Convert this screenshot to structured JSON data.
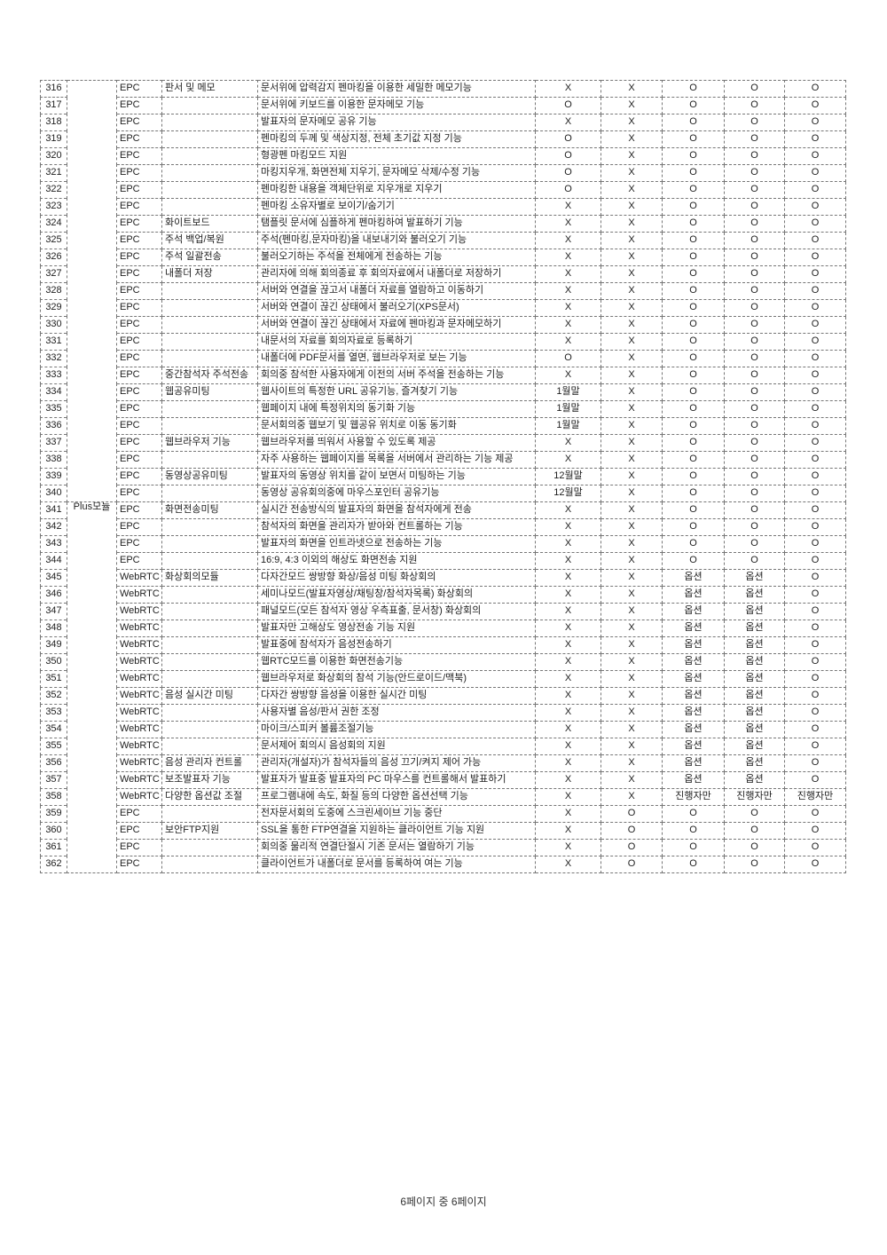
{
  "page": {
    "footer": "6페이지 중 6페이지"
  },
  "table": {
    "module_groups": [
      {
        "label": "",
        "rows": 25
      },
      {
        "label": "Plus모듈",
        "rows": 22
      }
    ],
    "rows": [
      {
        "no": "316",
        "engine": "EPC",
        "category": "판서 및 메모",
        "feature": "문서위에 압력감지 펜마킹을 이용한 세밀한 메모기능",
        "values": [
          "X",
          "X",
          "O",
          "O",
          "O"
        ]
      },
      {
        "no": "317",
        "engine": "EPC",
        "category": "",
        "feature": "문서위에 키보드를 이용한 문자메모 기능",
        "values": [
          "O",
          "X",
          "O",
          "O",
          "O"
        ]
      },
      {
        "no": "318",
        "engine": "EPC",
        "category": "",
        "feature": "발표자의 문자메모 공유 기능",
        "values": [
          "X",
          "X",
          "O",
          "O",
          "O"
        ]
      },
      {
        "no": "319",
        "engine": "EPC",
        "category": "",
        "feature": "펜마킹의 두께 및 색상지정, 전체 초기값 지정 기능",
        "values": [
          "O",
          "X",
          "O",
          "O",
          "O"
        ]
      },
      {
        "no": "320",
        "engine": "EPC",
        "category": "",
        "feature": "형광펜 마킹모드 지원",
        "values": [
          "O",
          "X",
          "O",
          "O",
          "O"
        ]
      },
      {
        "no": "321",
        "engine": "EPC",
        "category": "",
        "feature": "마킹지우개, 화면전체 지우기, 문자메모 삭제/수정 기능",
        "values": [
          "O",
          "X",
          "O",
          "O",
          "O"
        ]
      },
      {
        "no": "322",
        "engine": "EPC",
        "category": "",
        "feature": "펜마킹한 내용을 객체단위로 지우개로 지우기",
        "values": [
          "O",
          "X",
          "O",
          "O",
          "O"
        ]
      },
      {
        "no": "323",
        "engine": "EPC",
        "category": "",
        "feature": "펜마킹 소유자별로 보이기/숨기기",
        "values": [
          "X",
          "X",
          "O",
          "O",
          "O"
        ]
      },
      {
        "no": "324",
        "engine": "EPC",
        "category": "화이트보드",
        "feature": "탬플릿 문서에 심플하게 펜마킹하여 발표하기 기능",
        "values": [
          "X",
          "X",
          "O",
          "O",
          "O"
        ]
      },
      {
        "no": "325",
        "engine": "EPC",
        "category": "주석 백업/복원",
        "feature": "주석(펜마킹,문자마킹)을 내보내기와 불러오기 기능",
        "values": [
          "X",
          "X",
          "O",
          "O",
          "O"
        ]
      },
      {
        "no": "326",
        "engine": "EPC",
        "category": "주석 일괄전송",
        "feature": "불러오기하는 주석을 전체에게 전송하는 기능",
        "values": [
          "X",
          "X",
          "O",
          "O",
          "O"
        ]
      },
      {
        "no": "327",
        "engine": "EPC",
        "category": "내폴더 저장",
        "feature": "관리자에 의해 회의종료 후 회의자료에서 내폴더로 저장하기",
        "values": [
          "X",
          "X",
          "O",
          "O",
          "O"
        ]
      },
      {
        "no": "328",
        "engine": "EPC",
        "category": "",
        "feature": "서버와 연결을 끊고서 내폴더 자료를 열람하고 이동하기",
        "values": [
          "X",
          "X",
          "O",
          "O",
          "O"
        ]
      },
      {
        "no": "329",
        "engine": "EPC",
        "category": "",
        "feature": "서버와 연결이 끊긴 상태에서 불러오기(XPS문서)",
        "values": [
          "X",
          "X",
          "O",
          "O",
          "O"
        ]
      },
      {
        "no": "330",
        "engine": "EPC",
        "category": "",
        "feature": "서버와 연결이 끊긴 상태에서 자료에 펜마킹과 문자메모하기",
        "values": [
          "X",
          "X",
          "O",
          "O",
          "O"
        ]
      },
      {
        "no": "331",
        "engine": "EPC",
        "category": "",
        "feature": "내문서의 자료를 회의자료로 등록하기",
        "values": [
          "X",
          "X",
          "O",
          "O",
          "O"
        ]
      },
      {
        "no": "332",
        "engine": "EPC",
        "category": "",
        "feature": "내폴더에 PDF문서를 열면, 웹브라우저로 보는 기능",
        "values": [
          "O",
          "X",
          "O",
          "O",
          "O"
        ]
      },
      {
        "no": "333",
        "engine": "EPC",
        "category": "중간참석자 주석전송",
        "feature": "회의중 참석한 사용자에게 이전의 서버 주석을 전송하는 기능",
        "values": [
          "X",
          "X",
          "O",
          "O",
          "O"
        ]
      },
      {
        "no": "334",
        "engine": "EPC",
        "category": "웹공유미팅",
        "feature": "웹사이트의 특정한 URL 공유기능, 즐겨찾기 기능",
        "values": [
          "1월말",
          "X",
          "O",
          "O",
          "O"
        ]
      },
      {
        "no": "335",
        "engine": "EPC",
        "category": "",
        "feature": "웹페이지 내에 특정위치의 동기화 기능",
        "values": [
          "1월말",
          "X",
          "O",
          "O",
          "O"
        ]
      },
      {
        "no": "336",
        "engine": "EPC",
        "category": "",
        "feature": "문서회의중 웹보기 및 웹공유 위치로 이동 동기화",
        "values": [
          "1월말",
          "X",
          "O",
          "O",
          "O"
        ]
      },
      {
        "no": "337",
        "engine": "EPC",
        "category": "웹브라우저 기능",
        "feature": "웹브라우저를 띄워서 사용할 수 있도록 제공",
        "values": [
          "X",
          "X",
          "O",
          "O",
          "O"
        ]
      },
      {
        "no": "338",
        "engine": "EPC",
        "category": "",
        "feature": "자주 사용하는 웹페이지를 목록을 서버에서 관리하는 기능 제공",
        "values": [
          "X",
          "X",
          "O",
          "O",
          "O"
        ]
      },
      {
        "no": "339",
        "engine": "EPC",
        "category": "동영상공유미팅",
        "feature": "발표자의 동영상 위치를 같이 보면서 미팅하는 기능",
        "values": [
          "12월말",
          "X",
          "O",
          "O",
          "O"
        ]
      },
      {
        "no": "340",
        "engine": "EPC",
        "category": "",
        "feature": "동영상 공유회의중에 마우스포인터 공유기능",
        "values": [
          "12월말",
          "X",
          "O",
          "O",
          "O"
        ]
      },
      {
        "no": "341",
        "engine": "EPC",
        "category": "화면전송미팅",
        "feature": "실시간 전송방식의 발표자의 화면을 참석자에게 전송",
        "values": [
          "X",
          "X",
          "O",
          "O",
          "O"
        ]
      },
      {
        "no": "342",
        "engine": "EPC",
        "category": "",
        "feature": "참석자의 화면을 관리자가 받아와 컨트롤하는 기능",
        "values": [
          "X",
          "X",
          "O",
          "O",
          "O"
        ]
      },
      {
        "no": "343",
        "engine": "EPC",
        "category": "",
        "feature": "발표자의 화면을 인트라넷으로 전송하는 기능",
        "values": [
          "X",
          "X",
          "O",
          "O",
          "O"
        ]
      },
      {
        "no": "344",
        "engine": "EPC",
        "category": "",
        "feature": "16:9, 4:3 이외의 해상도 화면전송 지원",
        "values": [
          "X",
          "X",
          "O",
          "O",
          "O"
        ]
      },
      {
        "no": "345",
        "engine": "WebRTC",
        "category": "화상회의모듈",
        "feature": "다자간모드 쌍방향 화상/음성 미팅 화상회의",
        "values": [
          "X",
          "X",
          "옵션",
          "옵션",
          "O"
        ]
      },
      {
        "no": "346",
        "engine": "WebRTC",
        "category": "",
        "feature": "세미나모드(발표자영상/채팅창/참석자목록) 화상회의",
        "values": [
          "X",
          "X",
          "옵션",
          "옵션",
          "O"
        ]
      },
      {
        "no": "347",
        "engine": "WebRTC",
        "category": "",
        "feature": "패널모드(모든 참석자 영상 우측표출, 문서창) 화상회의",
        "values": [
          "X",
          "X",
          "옵션",
          "옵션",
          "O"
        ]
      },
      {
        "no": "348",
        "engine": "WebRTC",
        "category": "",
        "feature": "발표자만 고해상도 영상전송 기능 지원",
        "values": [
          "X",
          "X",
          "옵션",
          "옵션",
          "O"
        ]
      },
      {
        "no": "349",
        "engine": "WebRTC",
        "category": "",
        "feature": "발표중에 참석자가 음성전송하기",
        "values": [
          "X",
          "X",
          "옵션",
          "옵션",
          "O"
        ]
      },
      {
        "no": "350",
        "engine": "WebRTC",
        "category": "",
        "feature": "웹RTC모드를 이용한 화면전송기능",
        "values": [
          "X",
          "X",
          "옵션",
          "옵션",
          "O"
        ]
      },
      {
        "no": "351",
        "engine": "WebRTC",
        "category": "",
        "feature": "웹브라우저로 화상회의 참석 기능(안드로이드/맥북)",
        "values": [
          "X",
          "X",
          "옵션",
          "옵션",
          "O"
        ]
      },
      {
        "no": "352",
        "engine": "WebRTC",
        "category": "음성 실시간 미팅",
        "feature": "다자간 쌍방향 음성을 이용한 실시간 미팅",
        "values": [
          "X",
          "X",
          "옵션",
          "옵션",
          "O"
        ]
      },
      {
        "no": "353",
        "engine": "WebRTC",
        "category": "",
        "feature": "사용자별 음성/판서 권한 조정",
        "values": [
          "X",
          "X",
          "옵션",
          "옵션",
          "O"
        ]
      },
      {
        "no": "354",
        "engine": "WebRTC",
        "category": "",
        "feature": "마이크/스피커 볼륨조절기능",
        "values": [
          "X",
          "X",
          "옵션",
          "옵션",
          "O"
        ]
      },
      {
        "no": "355",
        "engine": "WebRTC",
        "category": "",
        "feature": "문서제어 회의시 음성회의 지원",
        "values": [
          "X",
          "X",
          "옵션",
          "옵션",
          "O"
        ]
      },
      {
        "no": "356",
        "engine": "WebRTC",
        "category": "음성 관리자 컨트롤",
        "feature": "관리자(개설자)가 참석자들의 음성 끄기/켜지 제어 가능",
        "values": [
          "X",
          "X",
          "옵션",
          "옵션",
          "O"
        ]
      },
      {
        "no": "357",
        "engine": "WebRTC",
        "category": "보조발표자 기능",
        "feature": "발표자가 발표중 발표자의 PC 마우스를 컨트롤해서 발표하기",
        "values": [
          "X",
          "X",
          "옵션",
          "옵션",
          "O"
        ]
      },
      {
        "no": "358",
        "engine": "WebRTC",
        "category": "다양한 옵션값 조절",
        "feature": "프로그램내에 속도, 화질 등의 다양한 옵션선택 기능",
        "values": [
          "X",
          "X",
          "진행자만",
          "진행자만",
          "진행자만"
        ]
      },
      {
        "no": "359",
        "engine": "EPC",
        "category": "",
        "feature": "전자문서회의 도중에 스크린세이브 기능 중단",
        "values": [
          "X",
          "O",
          "O",
          "O",
          "O"
        ]
      },
      {
        "no": "360",
        "engine": "EPC",
        "category": "보안FTP지원",
        "feature": "SSL을 통한 FTP연결을 지원하는 클라이언트 기능 지원",
        "values": [
          "X",
          "O",
          "O",
          "O",
          "O"
        ]
      },
      {
        "no": "361",
        "engine": "EPC",
        "category": "",
        "feature": "회의중 물리적 연결단절시 기존 문서는 열람하기 기능",
        "values": [
          "X",
          "O",
          "O",
          "O",
          "O"
        ]
      },
      {
        "no": "362",
        "engine": "EPC",
        "category": "",
        "feature": "클라이언트가 내폴더로 문서를 등록하여 여는 기능",
        "values": [
          "X",
          "O",
          "O",
          "O",
          "O"
        ]
      }
    ]
  }
}
